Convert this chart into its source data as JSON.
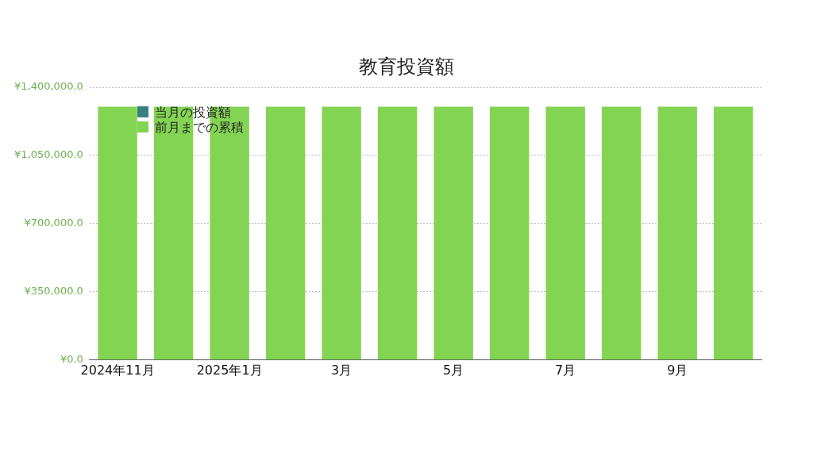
{
  "chart_data": {
    "type": "bar",
    "title": "教育投資額",
    "categories": [
      "2024年11月",
      null,
      "2025年1月",
      null,
      "3月",
      null,
      "5月",
      null,
      "7月",
      null,
      "9月",
      null
    ],
    "stacked": true,
    "series": [
      {
        "name": "当月の投資額",
        "color": "#3a8080",
        "values": [
          0,
          0,
          0,
          0,
          0,
          0,
          0,
          0,
          0,
          0,
          0,
          0
        ]
      },
      {
        "name": "前月までの累積",
        "color": "#83d452",
        "values": [
          1300000,
          1300000,
          1300000,
          1300000,
          1300000,
          1300000,
          1300000,
          1300000,
          1300000,
          1300000,
          1300000,
          1300000
        ]
      }
    ],
    "ylim": [
      0,
      1400000
    ],
    "yticks": [
      {
        "value": 0,
        "label": "¥0.0"
      },
      {
        "value": 350000,
        "label": "¥350,000.0"
      },
      {
        "value": 700000,
        "label": "¥700,000.0"
      },
      {
        "value": 1050000,
        "label": "¥1,050,000.0"
      },
      {
        "value": 1400000,
        "label": "¥1,400,000.0"
      }
    ],
    "grid": "y",
    "legend": "top left"
  }
}
